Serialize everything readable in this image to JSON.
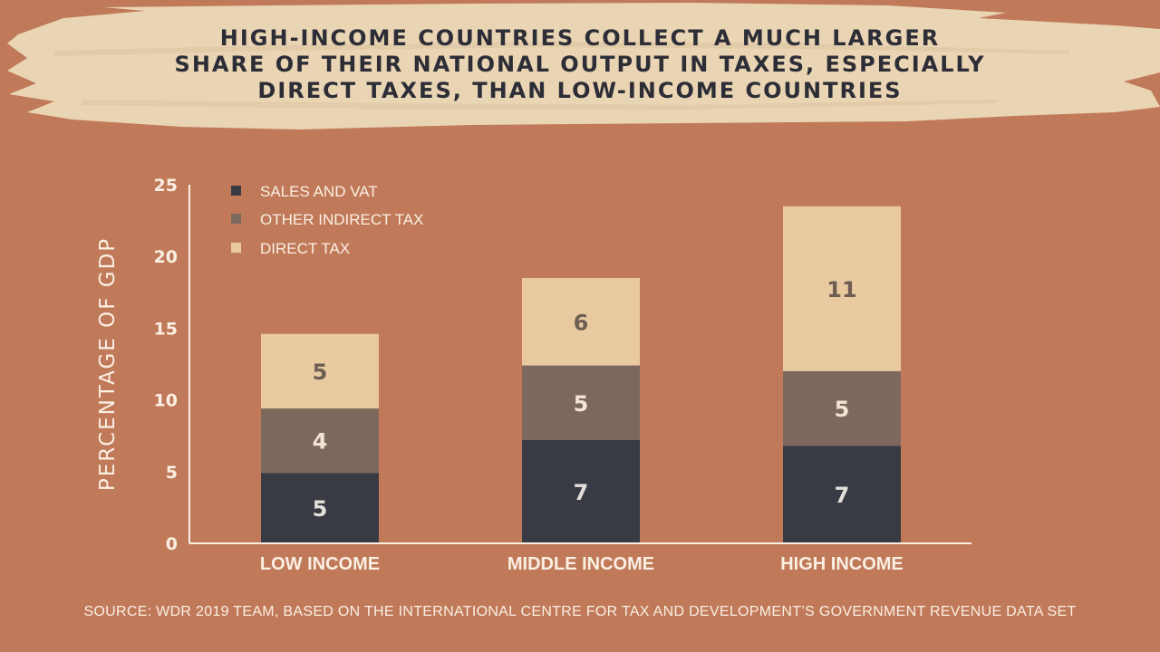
{
  "title_lines": [
    "HIGH-INCOME COUNTRIES COLLECT A MUCH LARGER",
    "SHARE OF THEIR NATIONAL OUTPUT IN TAXES, ESPECIALLY",
    "DIRECT TAXES, THAN LOW-INCOME COUNTRIES"
  ],
  "source": "SOURCE: WDR 2019 TEAM, BASED ON THE INTERNATIONAL CENTRE FOR TAX AND DEVELOPMENT’S GOVERNMENT REVENUE DATA SET",
  "colors": {
    "background": "#c07a5a",
    "banner": "#e9d4b3",
    "title": "#2c2d36",
    "text_light": "#fbefe3"
  },
  "chart_data": {
    "type": "bar",
    "stacked": true,
    "title": "",
    "xlabel": "",
    "ylabel": "PERCENTAGE OF GDP",
    "ylim": [
      0,
      25
    ],
    "yticks": [
      0,
      5,
      10,
      15,
      20,
      25
    ],
    "grid": false,
    "legend_position": "top-left",
    "categories": [
      "LOW INCOME",
      "MIDDLE INCOME",
      "HIGH INCOME"
    ],
    "series": [
      {
        "name": "SALES AND VAT",
        "color": "#383a44",
        "values": [
          4.9,
          7.2,
          6.8
        ],
        "labels": [
          "5",
          "7",
          "7"
        ]
      },
      {
        "name": "OTHER INDIRECT TAX",
        "color": "#7d685d",
        "values": [
          4.5,
          5.2,
          5.2
        ],
        "labels": [
          "4",
          "5",
          "5"
        ]
      },
      {
        "name": "DIRECT TAX",
        "color": "#e8c9a0",
        "values": [
          5.2,
          6.1,
          11.5
        ],
        "labels": [
          "5",
          "6",
          "11"
        ]
      }
    ]
  }
}
